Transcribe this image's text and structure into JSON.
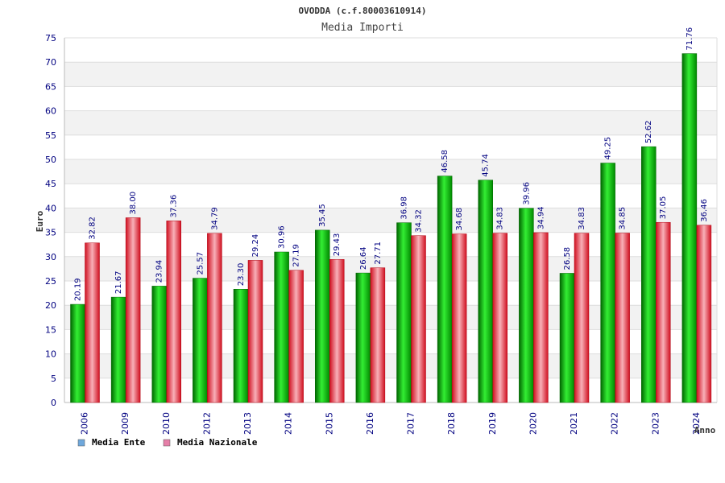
{
  "colors": {
    "ente": "#00cc00",
    "nazionale": "#e8323c",
    "legend_ente": "#6fa8dc",
    "legend_nazionale": "#e67fa8",
    "band": "#f2f2f2",
    "grid": "#dddddd",
    "text": "#000080"
  },
  "chart_data": {
    "type": "bar",
    "title": "OVODDA (c.f.80003610914)",
    "subtitle": "Media Importi",
    "xlabel": "Anno",
    "ylabel": "Euro",
    "ylim": [
      0,
      75
    ],
    "yticks": [
      0,
      5,
      10,
      15,
      20,
      25,
      30,
      35,
      40,
      45,
      50,
      55,
      60,
      65,
      70,
      75
    ],
    "grid": true,
    "legend_position": "bottom-left",
    "categories": [
      "2006",
      "2009",
      "2010",
      "2012",
      "2013",
      "2014",
      "2015",
      "2016",
      "2017",
      "2018",
      "2019",
      "2020",
      "2021",
      "2022",
      "2023",
      "2024"
    ],
    "series": [
      {
        "name": "Media Ente",
        "values": [
          20.19,
          21.67,
          23.94,
          25.57,
          23.3,
          30.96,
          35.45,
          26.64,
          36.98,
          46.58,
          45.74,
          39.96,
          26.58,
          49.25,
          52.62,
          71.76
        ],
        "labels": [
          "20.19",
          "21.67",
          "23.94",
          "25.57",
          "23.30",
          "30.96",
          "35.45",
          "26.64",
          "36.98",
          "46.58",
          "45.74",
          "39.96",
          "26.58",
          "49.25",
          "52.62",
          "71.76"
        ]
      },
      {
        "name": "Media Nazionale",
        "values": [
          32.82,
          38.0,
          37.36,
          34.79,
          29.24,
          27.19,
          29.43,
          27.71,
          34.32,
          34.68,
          34.83,
          34.94,
          34.83,
          34.85,
          37.05,
          36.46
        ],
        "labels": [
          "32.82",
          "38.00",
          "37.36",
          "34.79",
          "29.24",
          "27.19",
          "29.43",
          "27.71",
          "34.32",
          "34.68",
          "34.83",
          "34.94",
          "34.83",
          "34.85",
          "37.05",
          "36.46"
        ]
      }
    ]
  }
}
